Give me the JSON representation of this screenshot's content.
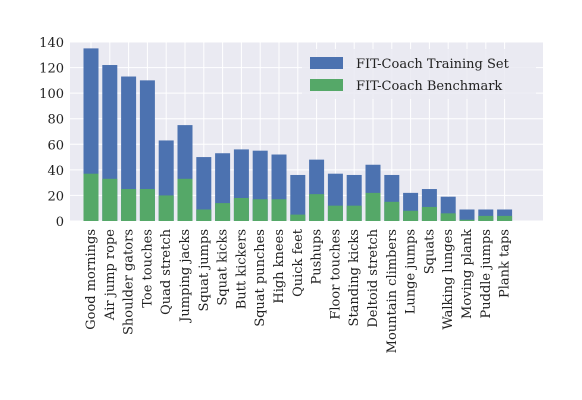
{
  "chart_data": {
    "type": "bar",
    "stacked": false,
    "overlay": true,
    "categories": [
      "Good mornings",
      "Air jump rope",
      "Shoulder gators",
      "Toe touches",
      "Quad stretch",
      "Jumping jacks",
      "Squat jumps",
      "Squat kicks",
      "Butt kickers",
      "Squat punches",
      "High knees",
      "Quick feet",
      "Pushups",
      "Floor touches",
      "Standing kicks",
      "Deltoid stretch",
      "Mountain climbers",
      "Lunge jumps",
      "Squats",
      "Walking lunges",
      "Moving plank",
      "Puddle jumps",
      "Plank taps"
    ],
    "series": [
      {
        "name": "FIT-Coach Training Set",
        "color": "#4C72B0",
        "values": [
          135,
          122,
          113,
          110,
          63,
          75,
          50,
          53,
          56,
          55,
          52,
          36,
          48,
          37,
          36,
          44,
          36,
          22,
          25,
          19,
          9,
          9,
          9
        ]
      },
      {
        "name": "FIT-Coach Benchmark",
        "color": "#55A868",
        "values": [
          37,
          33,
          25,
          25,
          20,
          33,
          9,
          14,
          18,
          17,
          17,
          5,
          21,
          12,
          12,
          22,
          15,
          8,
          11,
          6,
          1,
          4,
          4
        ]
      }
    ],
    "ylim": [
      0,
      140
    ],
    "yticks": [
      "0",
      "20",
      "40",
      "60",
      "80",
      "100",
      "120",
      "140"
    ],
    "grid": true,
    "legend_position": "top-right",
    "background": "#EAEAF2",
    "title": "",
    "xlabel": "",
    "ylabel": ""
  }
}
